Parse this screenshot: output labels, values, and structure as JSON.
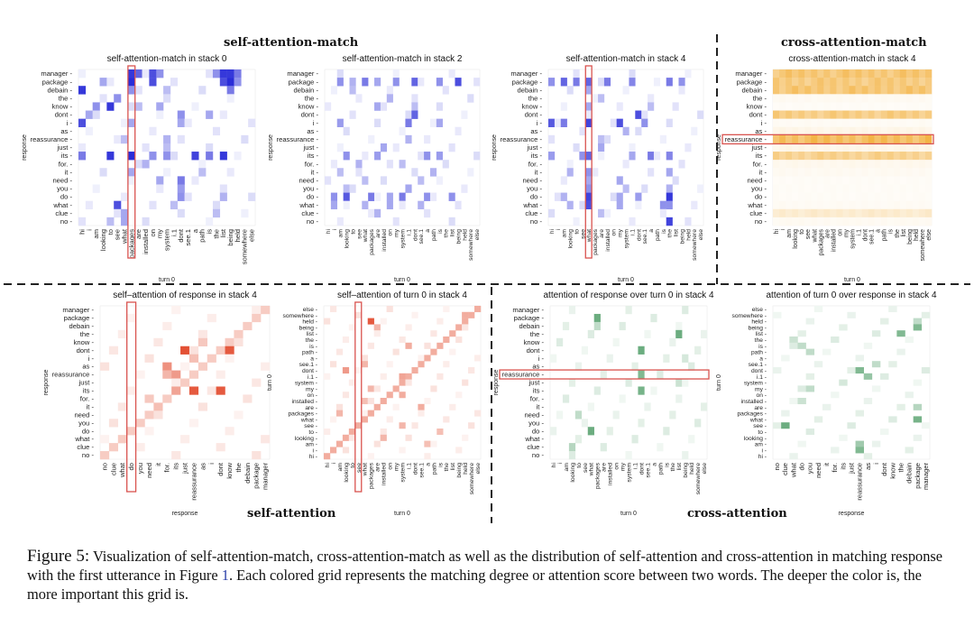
{
  "sections": {
    "self_attention_match": "self-attention-match",
    "cross_attention_match": "cross-attention-match",
    "self_attention": "self-attention",
    "cross_attention": "cross-attention"
  },
  "caption": {
    "label": "Figure 5:",
    "text_before_ref": "Visualization of self-attention-match, cross-attention-match as well as the distribution of self-attention and cross-attention in matching response with the first utterance in Figure",
    "ref": "1",
    "text_after_ref": ". Each colored grid represents the matching degree or attention score between two words. The deeper the color is, the more important this grid is."
  },
  "words": {
    "response": [
      "manager",
      "package",
      "debain",
      "the",
      "know",
      "dont",
      "i",
      "as",
      "reassurance",
      "just",
      "its",
      "for.",
      "it",
      "need",
      "you",
      "do",
      "what",
      "clue",
      "no"
    ],
    "turn0": [
      "hi",
      "i",
      "am",
      "looking",
      "to",
      "see",
      "what",
      "packages",
      "are",
      "installed",
      "on",
      "my",
      "system",
      "i.1",
      "dont",
      "see.1",
      "a",
      "path",
      "is",
      "the",
      "list",
      "being",
      "held",
      "somewhere",
      "else"
    ]
  },
  "chart_data": [
    {
      "type": "heatmap",
      "title": "self-attention-match in stack 0",
      "color": "#1f22d6",
      "xlabel": "turn 0",
      "ylabel": "response",
      "rows": "response",
      "cols": "turn0",
      "highlight": {
        "col": "packages"
      },
      "cells": [
        [
          0,
          7,
          0.9
        ],
        [
          0,
          8,
          0.7
        ],
        [
          0,
          10,
          0.8
        ],
        [
          0,
          11,
          0.5
        ],
        [
          0,
          19,
          0.5
        ],
        [
          0,
          20,
          0.9
        ],
        [
          0,
          21,
          0.9
        ],
        [
          0,
          22,
          0.6
        ],
        [
          1,
          3,
          0.4
        ],
        [
          1,
          7,
          0.95
        ],
        [
          1,
          10,
          0.8
        ],
        [
          1,
          20,
          0.8
        ],
        [
          1,
          21,
          0.95
        ],
        [
          1,
          22,
          0.5
        ],
        [
          2,
          0,
          0.9
        ],
        [
          2,
          7,
          0.5
        ],
        [
          2,
          12,
          0.3
        ],
        [
          2,
          21,
          0.6
        ],
        [
          3,
          5,
          0.5
        ],
        [
          4,
          2,
          0.5
        ],
        [
          4,
          4,
          0.9
        ],
        [
          4,
          8,
          0.3
        ],
        [
          4,
          11,
          0.4
        ],
        [
          5,
          1,
          0.4
        ],
        [
          5,
          14,
          0.5
        ],
        [
          5,
          18,
          0.4
        ],
        [
          6,
          0,
          0.8
        ],
        [
          6,
          7,
          0.4
        ],
        [
          6,
          14,
          0.4
        ],
        [
          8,
          6,
          0.3
        ],
        [
          8,
          12,
          0.35
        ],
        [
          9,
          12,
          0.3
        ],
        [
          10,
          0,
          0.6
        ],
        [
          10,
          4,
          0.9
        ],
        [
          10,
          7,
          0.95
        ],
        [
          10,
          10,
          0.5
        ],
        [
          10,
          12,
          0.5
        ],
        [
          10,
          16,
          0.85
        ],
        [
          10,
          18,
          0.6
        ],
        [
          10,
          20,
          0.9
        ],
        [
          11,
          9,
          0.35
        ],
        [
          12,
          7,
          0.4
        ],
        [
          12,
          17,
          0.3
        ],
        [
          13,
          11,
          0.4
        ],
        [
          13,
          14,
          0.6
        ],
        [
          14,
          14,
          0.45
        ],
        [
          15,
          14,
          0.5
        ],
        [
          15,
          20,
          0.35
        ],
        [
          16,
          5,
          0.8
        ],
        [
          16,
          13,
          0.3
        ],
        [
          17,
          6,
          0.4
        ],
        [
          17,
          19,
          0.3
        ],
        [
          18,
          4,
          0.3
        ],
        [
          18,
          6,
          0.4
        ]
      ]
    },
    {
      "type": "heatmap",
      "title": "self-attention-match in stack 2",
      "color": "#1f22d6",
      "xlabel": "turn 0",
      "ylabel": "response",
      "rows": "response",
      "cols": "turn0",
      "cells": [
        [
          1,
          2,
          0.5
        ],
        [
          1,
          4,
          0.35
        ],
        [
          1,
          6,
          0.6
        ],
        [
          1,
          8,
          0.4
        ],
        [
          1,
          11,
          0.5
        ],
        [
          1,
          14,
          0.7
        ],
        [
          1,
          18,
          0.5
        ],
        [
          1,
          21,
          0.8
        ],
        [
          2,
          4,
          0.3
        ],
        [
          3,
          10,
          0.35
        ],
        [
          4,
          8,
          0.4
        ],
        [
          4,
          14,
          0.3
        ],
        [
          5,
          14,
          0.7
        ],
        [
          6,
          2,
          0.45
        ],
        [
          6,
          13,
          0.6
        ],
        [
          6,
          18,
          0.4
        ],
        [
          8,
          13,
          0.35
        ],
        [
          9,
          9,
          0.4
        ],
        [
          10,
          3,
          0.5
        ],
        [
          10,
          8,
          0.45
        ],
        [
          10,
          16,
          0.5
        ],
        [
          10,
          18,
          0.45
        ],
        [
          11,
          5,
          0.35
        ],
        [
          11,
          12,
          0.3
        ],
        [
          12,
          2,
          0.3
        ],
        [
          12,
          17,
          0.35
        ],
        [
          13,
          6,
          0.3
        ],
        [
          13,
          15,
          0.3
        ],
        [
          14,
          3,
          0.3
        ],
        [
          14,
          13,
          0.4
        ],
        [
          15,
          1,
          0.5
        ],
        [
          15,
          3,
          0.75
        ],
        [
          15,
          7,
          0.6
        ],
        [
          15,
          10,
          0.4
        ],
        [
          15,
          12,
          0.6
        ],
        [
          15,
          16,
          0.5
        ],
        [
          15,
          20,
          0.5
        ],
        [
          16,
          1,
          0.4
        ],
        [
          16,
          6,
          0.35
        ],
        [
          16,
          10,
          0.4
        ],
        [
          16,
          15,
          0.35
        ],
        [
          17,
          8,
          0.35
        ]
      ]
    },
    {
      "type": "heatmap",
      "title": "self-attention-match in stack 4",
      "color": "#1f22d6",
      "xlabel": "turn 0",
      "ylabel": "response",
      "rows": "response",
      "cols": "turn0",
      "highlight": {
        "col": "what"
      },
      "cells": [
        [
          1,
          0,
          0.5
        ],
        [
          1,
          2,
          0.7
        ],
        [
          1,
          4,
          0.6
        ],
        [
          1,
          6,
          0.7
        ],
        [
          1,
          9,
          0.6
        ],
        [
          1,
          13,
          0.55
        ],
        [
          1,
          19,
          0.6
        ],
        [
          1,
          21,
          0.5
        ],
        [
          2,
          6,
          0.4
        ],
        [
          3,
          8,
          0.3
        ],
        [
          4,
          6,
          0.4
        ],
        [
          4,
          16,
          0.3
        ],
        [
          5,
          14,
          0.8
        ],
        [
          6,
          0,
          0.75
        ],
        [
          6,
          2,
          0.6
        ],
        [
          6,
          6,
          0.85
        ],
        [
          6,
          11,
          0.8
        ],
        [
          6,
          15,
          0.5
        ],
        [
          7,
          12,
          0.35
        ],
        [
          8,
          8,
          0.3
        ],
        [
          9,
          8,
          0.4
        ],
        [
          10,
          0,
          0.45
        ],
        [
          10,
          5,
          0.5
        ],
        [
          10,
          6,
          0.7
        ],
        [
          10,
          13,
          0.4
        ],
        [
          10,
          16,
          0.6
        ],
        [
          10,
          19,
          0.55
        ],
        [
          12,
          3,
          0.35
        ],
        [
          12,
          6,
          0.5
        ],
        [
          12,
          19,
          0.4
        ],
        [
          13,
          6,
          0.4
        ],
        [
          13,
          11,
          0.4
        ],
        [
          14,
          6,
          0.5
        ],
        [
          14,
          12,
          0.3
        ],
        [
          14,
          19,
          0.35
        ],
        [
          15,
          2,
          0.35
        ],
        [
          15,
          6,
          0.85
        ],
        [
          15,
          11,
          0.4
        ],
        [
          15,
          14,
          0.45
        ],
        [
          15,
          19,
          0.9
        ],
        [
          16,
          3,
          0.35
        ],
        [
          16,
          6,
          0.8
        ],
        [
          16,
          11,
          0.4
        ],
        [
          16,
          18,
          0.5
        ],
        [
          16,
          19,
          0.5
        ],
        [
          17,
          8,
          0.3
        ],
        [
          18,
          19,
          0.85
        ]
      ]
    },
    {
      "type": "heatmap",
      "title": "cross-attention-match in stack 4",
      "color": "#f0a016",
      "xlabel": "turn 0",
      "ylabel": "response",
      "rows": "response",
      "cols": "turn0",
      "highlight": {
        "row": "reassurance"
      },
      "row_levels": [
        0.62,
        0.58,
        0.62,
        0.06,
        0.04,
        0.55,
        0.05,
        0.1,
        0.72,
        0.1,
        0.5,
        0.08,
        0.06,
        0.04,
        0.04,
        0.04,
        0.05,
        0.22,
        0.06
      ]
    },
    {
      "type": "heatmap",
      "title": "self–attention of response in stack 4",
      "color": "#e2482a",
      "xlabel": "response",
      "ylabel": "response",
      "rows": "response",
      "cols": "response_reversed",
      "diagonal": 0.28,
      "highlight": {
        "col": "do"
      },
      "cells": [
        [
          5,
          9,
          0.95
        ],
        [
          5,
          14,
          0.9
        ],
        [
          7,
          7,
          0.6
        ],
        [
          8,
          8,
          0.55
        ],
        [
          8,
          7,
          0.4
        ],
        [
          10,
          8,
          0.5
        ],
        [
          10,
          10,
          0.9
        ],
        [
          10,
          13,
          0.9
        ],
        [
          6,
          10,
          0.35
        ],
        [
          11,
          5,
          0.3
        ],
        [
          4,
          11,
          0.3
        ],
        [
          12,
          6,
          0.35
        ]
      ]
    },
    {
      "type": "heatmap",
      "title": "self–attention of turn 0 in stack 4",
      "color": "#e2482a",
      "xlabel": "turn 0",
      "ylabel": "turn 0",
      "rows": "turn0_reversed",
      "cols": "turn0",
      "diagonal": 0.45,
      "highlight": {
        "col": "see"
      },
      "cells": [
        [
          2,
          7,
          0.9
        ],
        [
          3,
          8,
          0.4
        ],
        [
          6,
          13,
          0.45
        ],
        [
          9,
          6,
          0.4
        ],
        [
          10,
          3,
          0.55
        ],
        [
          11,
          12,
          0.5
        ],
        [
          13,
          7,
          0.4
        ],
        [
          14,
          12,
          0.45
        ],
        [
          15,
          6,
          0.35
        ],
        [
          16,
          15,
          0.45
        ],
        [
          17,
          2,
          0.4
        ],
        [
          19,
          12,
          0.4
        ],
        [
          20,
          18,
          0.35
        ],
        [
          21,
          9,
          0.4
        ],
        [
          22,
          16,
          0.35
        ],
        [
          1,
          22,
          0.45
        ],
        [
          4,
          20,
          0.4
        ]
      ]
    },
    {
      "type": "heatmap",
      "title": "attention of response over turn 0 in stack 4",
      "color": "#2d8a4a",
      "xlabel": "turn 0",
      "ylabel": "response",
      "rows": "response",
      "cols": "turn0",
      "highlight": {
        "row": "reassurance"
      },
      "cells": [
        [
          1,
          7,
          0.7
        ],
        [
          2,
          7,
          0.3
        ],
        [
          3,
          20,
          0.7
        ],
        [
          5,
          14,
          0.7
        ],
        [
          8,
          14,
          0.6
        ],
        [
          10,
          14,
          0.65
        ],
        [
          13,
          4,
          0.3
        ],
        [
          15,
          6,
          0.7
        ],
        [
          17,
          3,
          0.35
        ],
        [
          9,
          20,
          0.25
        ],
        [
          6,
          21,
          0.2
        ]
      ]
    },
    {
      "type": "heatmap",
      "title": "attention of turn 0 over response in stack 4",
      "color": "#2d8a4a",
      "xlabel": "response",
      "ylabel": "turn 0",
      "rows": "turn0_reversed",
      "cols": "response_reversed",
      "cells": [
        [
          2,
          17,
          0.3
        ],
        [
          3,
          17,
          0.6
        ],
        [
          4,
          15,
          0.6
        ],
        [
          6,
          3,
          0.3
        ],
        [
          7,
          4,
          0.3
        ],
        [
          9,
          12,
          0.3
        ],
        [
          10,
          10,
          0.6
        ],
        [
          11,
          11,
          0.5
        ],
        [
          13,
          4,
          0.3
        ],
        [
          15,
          3,
          0.25
        ],
        [
          16,
          17,
          0.35
        ],
        [
          18,
          17,
          0.65
        ],
        [
          19,
          1,
          0.7
        ],
        [
          22,
          10,
          0.45
        ],
        [
          23,
          10,
          0.6
        ],
        [
          5,
          2,
          0.25
        ],
        [
          12,
          8,
          0.2
        ]
      ]
    }
  ]
}
